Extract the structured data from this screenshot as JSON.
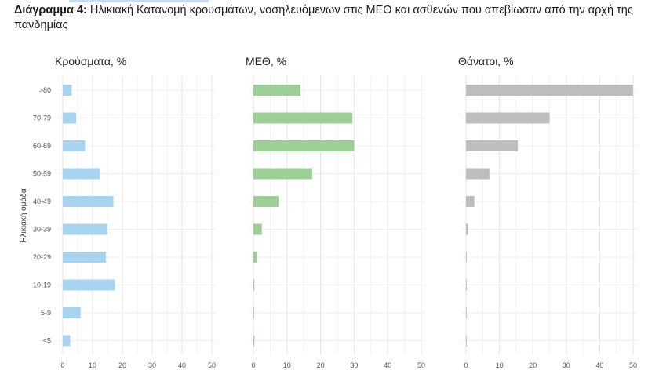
{
  "caption": {
    "prefix": "Διάγραμμα 4:",
    "text": " Ηλικιακή Κατανομή κρουσμάτων, νοσηλευόμενων στις ΜΕΘ και ασθενών που απεβίωσαν από την αρχή της πανδημίας"
  },
  "chart_data": [
    {
      "type": "bar",
      "orientation": "horizontal",
      "title": "Κρούσματα, %",
      "ylabel": "Ηλικιακή ομάδα",
      "categories": [
        ">80",
        "70-79",
        "60-69",
        "50-59",
        "40-49",
        "30-39",
        "20-29",
        "10-19",
        "5-9",
        "<5"
      ],
      "values": [
        3,
        4.5,
        7.5,
        12.5,
        17,
        15,
        14.5,
        17.5,
        6,
        2.5
      ],
      "xlim": [
        0,
        50
      ],
      "xticks": [
        0,
        10,
        20,
        30,
        40,
        50
      ],
      "color": "#a9d4f0",
      "grid": true
    },
    {
      "type": "bar",
      "orientation": "horizontal",
      "title": "ΜΕΘ, %",
      "categories": [
        ">80",
        "70-79",
        "60-69",
        "50-59",
        "40-49",
        "30-39",
        "20-29",
        "10-19",
        "5-9",
        "<5"
      ],
      "values": [
        14,
        29.5,
        30,
        17.5,
        7.5,
        2.5,
        1,
        0.3,
        0.2,
        0.3
      ],
      "xlim": [
        0,
        50
      ],
      "xticks": [
        0,
        10,
        20,
        30,
        40,
        50
      ],
      "color": "#9bcf95",
      "grid": true
    },
    {
      "type": "bar",
      "orientation": "horizontal",
      "title": "Θάνατοι, %",
      "categories": [
        ">80",
        "70-79",
        "60-69",
        "50-59",
        "40-49",
        "30-39",
        "20-29",
        "10-19",
        "5-9",
        "<5"
      ],
      "values": [
        50,
        25,
        15.5,
        7,
        2.5,
        0.6,
        0.2,
        0.2,
        0,
        0.1
      ],
      "xlim": [
        0,
        50
      ],
      "xticks": [
        0,
        10,
        20,
        30,
        40,
        50
      ],
      "color": "#bdbdbd",
      "grid": true
    }
  ]
}
